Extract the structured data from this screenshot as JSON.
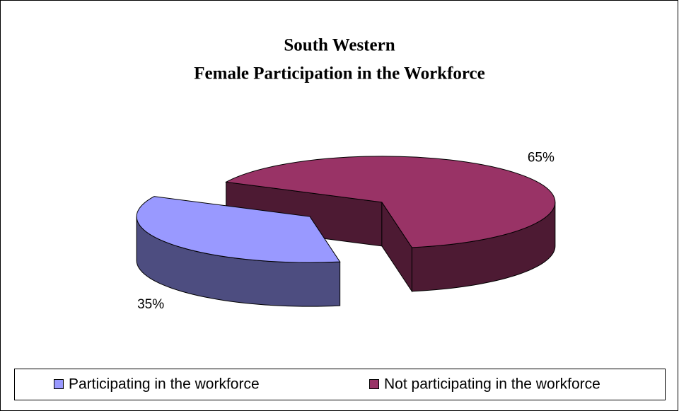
{
  "chart_data": {
    "type": "pie3d",
    "title": [
      "South Western",
      "Female Participation in the Workforce"
    ],
    "categories": [
      "Participating in the workforce",
      "Not participating in the workforce"
    ],
    "values": [
      35,
      65
    ],
    "value_labels": [
      "35%",
      "65%"
    ],
    "colors": [
      "#9999ff",
      "#993366"
    ],
    "legend": "bottom"
  }
}
